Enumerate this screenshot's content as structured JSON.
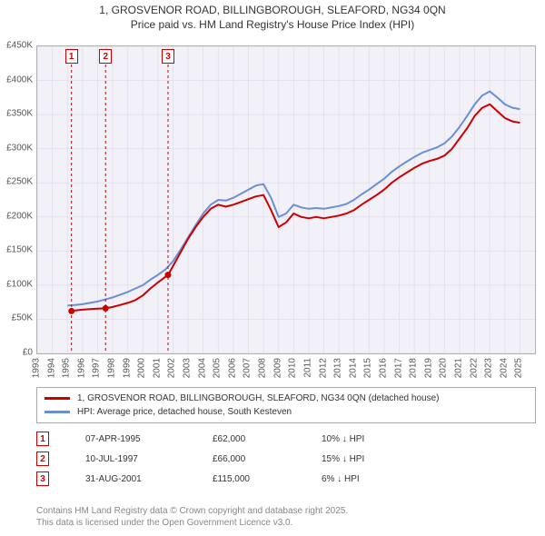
{
  "title_line1": "1, GROSVENOR ROAD, BILLINGBOROUGH, SLEAFORD, NG34 0QN",
  "title_line2": "Price paid vs. HM Land Registry's House Price Index (HPI)",
  "chart": {
    "type": "line",
    "plot_bg": "#f3f1f8",
    "grid_color": "#e4e0ee",
    "axis_color": "#b0b0b0",
    "xlim": [
      1993,
      2026
    ],
    "ylim": [
      0,
      450000
    ],
    "ytick_step": 50000,
    "ytick_labels": [
      "£0",
      "£50K",
      "£100K",
      "£150K",
      "£200K",
      "£250K",
      "£300K",
      "£350K",
      "£400K",
      "£450K"
    ],
    "xticks": [
      1993,
      1994,
      1995,
      1996,
      1997,
      1998,
      1999,
      2000,
      2001,
      2002,
      2003,
      2004,
      2005,
      2006,
      2007,
      2008,
      2009,
      2010,
      2011,
      2012,
      2013,
      2014,
      2015,
      2016,
      2017,
      2018,
      2019,
      2020,
      2021,
      2022,
      2023,
      2024,
      2025
    ],
    "series": [
      {
        "name": "price_paid",
        "color": "#cc0000",
        "width": 2,
        "points": [
          [
            1995.27,
            62000
          ],
          [
            1995.5,
            63000
          ],
          [
            1996,
            64000
          ],
          [
            1996.5,
            65000
          ],
          [
            1997,
            65500
          ],
          [
            1997.53,
            66000
          ],
          [
            1998,
            68000
          ],
          [
            1998.5,
            71000
          ],
          [
            1999,
            74000
          ],
          [
            1999.5,
            78000
          ],
          [
            2000,
            85000
          ],
          [
            2000.5,
            95000
          ],
          [
            2001,
            104000
          ],
          [
            2001.67,
            115000
          ],
          [
            2002,
            128000
          ],
          [
            2002.5,
            148000
          ],
          [
            2003,
            168000
          ],
          [
            2003.5,
            185000
          ],
          [
            2004,
            200000
          ],
          [
            2004.5,
            212000
          ],
          [
            2005,
            218000
          ],
          [
            2005.5,
            215000
          ],
          [
            2006,
            218000
          ],
          [
            2006.5,
            222000
          ],
          [
            2007,
            226000
          ],
          [
            2007.5,
            230000
          ],
          [
            2008,
            232000
          ],
          [
            2008.5,
            210000
          ],
          [
            2009,
            185000
          ],
          [
            2009.5,
            192000
          ],
          [
            2010,
            205000
          ],
          [
            2010.5,
            200000
          ],
          [
            2011,
            198000
          ],
          [
            2011.5,
            200000
          ],
          [
            2012,
            198000
          ],
          [
            2012.5,
            200000
          ],
          [
            2013,
            202000
          ],
          [
            2013.5,
            205000
          ],
          [
            2014,
            210000
          ],
          [
            2014.5,
            218000
          ],
          [
            2015,
            225000
          ],
          [
            2015.5,
            232000
          ],
          [
            2016,
            240000
          ],
          [
            2016.5,
            250000
          ],
          [
            2017,
            258000
          ],
          [
            2017.5,
            265000
          ],
          [
            2018,
            272000
          ],
          [
            2018.5,
            278000
          ],
          [
            2019,
            282000
          ],
          [
            2019.5,
            285000
          ],
          [
            2020,
            290000
          ],
          [
            2020.5,
            300000
          ],
          [
            2021,
            315000
          ],
          [
            2021.5,
            330000
          ],
          [
            2022,
            348000
          ],
          [
            2022.5,
            360000
          ],
          [
            2023,
            365000
          ],
          [
            2023.5,
            355000
          ],
          [
            2024,
            345000
          ],
          [
            2024.5,
            340000
          ],
          [
            2025,
            338000
          ]
        ]
      },
      {
        "name": "hpi",
        "color": "#6a8fd4",
        "width": 2,
        "points": [
          [
            1995,
            70000
          ],
          [
            1995.5,
            71000
          ],
          [
            1996,
            72000
          ],
          [
            1996.5,
            74000
          ],
          [
            1997,
            76000
          ],
          [
            1997.5,
            79000
          ],
          [
            1998,
            82000
          ],
          [
            1998.5,
            86000
          ],
          [
            1999,
            90000
          ],
          [
            1999.5,
            95000
          ],
          [
            2000,
            100000
          ],
          [
            2000.5,
            108000
          ],
          [
            2001,
            115000
          ],
          [
            2001.5,
            123000
          ],
          [
            2002,
            135000
          ],
          [
            2002.5,
            152000
          ],
          [
            2003,
            170000
          ],
          [
            2003.5,
            188000
          ],
          [
            2004,
            205000
          ],
          [
            2004.5,
            218000
          ],
          [
            2005,
            225000
          ],
          [
            2005.5,
            224000
          ],
          [
            2006,
            228000
          ],
          [
            2006.5,
            234000
          ],
          [
            2007,
            240000
          ],
          [
            2007.5,
            246000
          ],
          [
            2008,
            248000
          ],
          [
            2008.5,
            228000
          ],
          [
            2009,
            200000
          ],
          [
            2009.5,
            205000
          ],
          [
            2010,
            218000
          ],
          [
            2010.5,
            214000
          ],
          [
            2011,
            212000
          ],
          [
            2011.5,
            213000
          ],
          [
            2012,
            212000
          ],
          [
            2012.5,
            214000
          ],
          [
            2013,
            216000
          ],
          [
            2013.5,
            219000
          ],
          [
            2014,
            225000
          ],
          [
            2014.5,
            233000
          ],
          [
            2015,
            240000
          ],
          [
            2015.5,
            248000
          ],
          [
            2016,
            256000
          ],
          [
            2016.5,
            266000
          ],
          [
            2017,
            274000
          ],
          [
            2017.5,
            281000
          ],
          [
            2018,
            288000
          ],
          [
            2018.5,
            294000
          ],
          [
            2019,
            298000
          ],
          [
            2019.5,
            302000
          ],
          [
            2020,
            308000
          ],
          [
            2020.5,
            318000
          ],
          [
            2021,
            332000
          ],
          [
            2021.5,
            348000
          ],
          [
            2022,
            365000
          ],
          [
            2022.5,
            378000
          ],
          [
            2023,
            384000
          ],
          [
            2023.5,
            375000
          ],
          [
            2024,
            365000
          ],
          [
            2024.5,
            360000
          ],
          [
            2025,
            358000
          ]
        ]
      }
    ],
    "sale_markers": [
      {
        "n": "1",
        "x": 1995.27,
        "y": 62000,
        "color": "#cc0000"
      },
      {
        "n": "2",
        "x": 1997.53,
        "y": 66000,
        "color": "#cc0000"
      },
      {
        "n": "3",
        "x": 2001.67,
        "y": 115000,
        "color": "#cc0000"
      }
    ]
  },
  "legend": {
    "items": [
      {
        "color": "#cc0000",
        "label": "1, GROSVENOR ROAD, BILLINGBOROUGH, SLEAFORD, NG34 0QN (detached house)"
      },
      {
        "color": "#6a8fd4",
        "label": "HPI: Average price, detached house, South Kesteven"
      }
    ]
  },
  "transactions": [
    {
      "n": "1",
      "color": "#cc0000",
      "date": "07-APR-1995",
      "price": "£62,000",
      "delta": "10% ↓ HPI"
    },
    {
      "n": "2",
      "color": "#cc0000",
      "date": "10-JUL-1997",
      "price": "£66,000",
      "delta": "15% ↓ HPI"
    },
    {
      "n": "3",
      "color": "#cc0000",
      "date": "31-AUG-2001",
      "price": "£115,000",
      "delta": "6% ↓ HPI"
    }
  ],
  "footer_line1": "Contains HM Land Registry data © Crown copyright and database right 2025.",
  "footer_line2": "This data is licensed under the Open Government Licence v3.0."
}
